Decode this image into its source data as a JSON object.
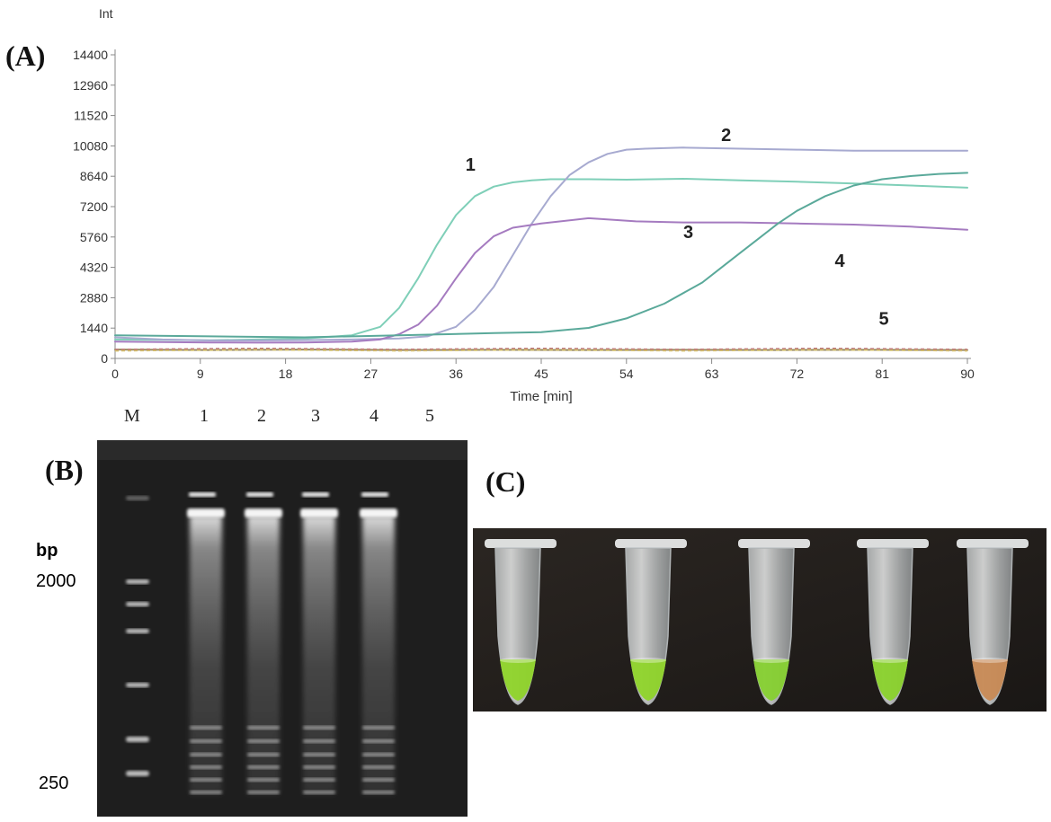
{
  "panels": {
    "a_label": "(A)",
    "b_label": "(B)",
    "c_label": "(C)"
  },
  "chart_data": {
    "type": "line",
    "title": "",
    "xlabel": "Time [min]",
    "ylabel": "Int",
    "xlim": [
      0,
      90
    ],
    "ylim": [
      0,
      14400
    ],
    "xticks": [
      0,
      9,
      18,
      27,
      36,
      45,
      54,
      63,
      72,
      81,
      90
    ],
    "yticks": [
      0,
      1440,
      2880,
      4320,
      5760,
      7200,
      8640,
      10080,
      11520,
      12960,
      14400
    ],
    "grid": false,
    "series": [
      {
        "name": "1",
        "color": "#7fcfb8",
        "x": [
          0,
          5,
          10,
          15,
          20,
          25,
          28,
          30,
          32,
          34,
          36,
          38,
          40,
          42,
          44,
          46,
          50,
          54,
          60,
          66,
          72,
          78,
          84,
          90
        ],
        "y": [
          900,
          880,
          860,
          900,
          950,
          1100,
          1500,
          2400,
          3800,
          5400,
          6800,
          7700,
          8150,
          8350,
          8450,
          8500,
          8500,
          8480,
          8520,
          8450,
          8380,
          8300,
          8200,
          8100
        ]
      },
      {
        "name": "2",
        "color": "#a7aad0",
        "x": [
          0,
          5,
          10,
          15,
          20,
          25,
          30,
          33,
          36,
          38,
          40,
          42,
          44,
          46,
          48,
          50,
          52,
          54,
          56,
          60,
          66,
          72,
          78,
          84,
          90
        ],
        "y": [
          1000,
          900,
          850,
          850,
          870,
          900,
          950,
          1050,
          1500,
          2300,
          3400,
          4900,
          6400,
          7700,
          8700,
          9300,
          9700,
          9900,
          9950,
          10000,
          9950,
          9900,
          9850,
          9850,
          9850
        ]
      },
      {
        "name": "3",
        "color": "#a57bc0",
        "x": [
          0,
          5,
          10,
          15,
          20,
          25,
          28,
          30,
          32,
          34,
          36,
          38,
          40,
          42,
          45,
          50,
          55,
          60,
          66,
          72,
          78,
          84,
          90
        ],
        "y": [
          800,
          780,
          760,
          750,
          760,
          800,
          900,
          1150,
          1600,
          2500,
          3800,
          5000,
          5800,
          6200,
          6400,
          6650,
          6500,
          6450,
          6450,
          6400,
          6350,
          6250,
          6100
        ]
      },
      {
        "name": "4",
        "color": "#5aa99a",
        "x": [
          0,
          10,
          20,
          30,
          40,
          45,
          50,
          54,
          58,
          62,
          64,
          66,
          68,
          70,
          72,
          75,
          78,
          81,
          84,
          87,
          90
        ],
        "y": [
          1100,
          1050,
          1000,
          1100,
          1200,
          1250,
          1450,
          1900,
          2600,
          3600,
          4300,
          5000,
          5700,
          6400,
          7000,
          7700,
          8200,
          8500,
          8650,
          8750,
          8800
        ]
      },
      {
        "name": "5",
        "color": "#9a8a60",
        "x": [
          0,
          10,
          20,
          30,
          40,
          50,
          60,
          70,
          80,
          90
        ],
        "y": [
          420,
          400,
          420,
          400,
          410,
          400,
          410,
          400,
          410,
          400
        ]
      }
    ],
    "annotations": [
      "1",
      "2",
      "3",
      "4",
      "5"
    ]
  },
  "gel": {
    "lane_labels": [
      "M",
      "1",
      "2",
      "3",
      "4",
      "5"
    ],
    "bp_label": "bp",
    "marker_high": "2000",
    "marker_low": "250"
  },
  "tubes": {
    "count": 5,
    "colors": [
      "#8fd42a",
      "#8fd42a",
      "#86d030",
      "#8ad22c",
      "#c88a55"
    ]
  }
}
